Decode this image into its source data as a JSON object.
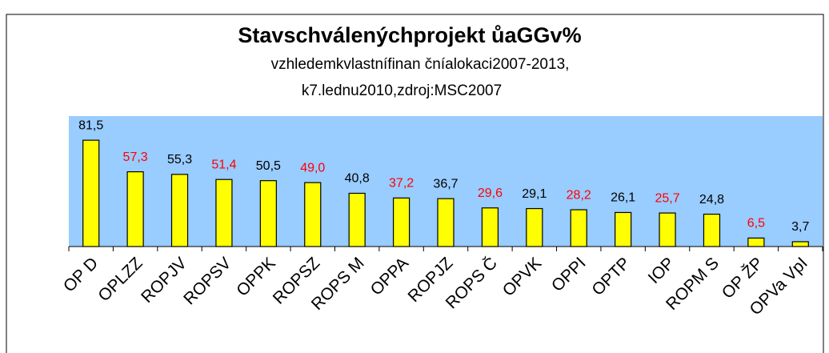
{
  "chart_data": {
    "type": "bar",
    "title": "Stavschválenýchprojekt ůaGGv%",
    "subtitle": [
      "vzhledemkvlastnífinan  čníalokaci2007-2013,",
      "k7.lednu2010,zdroj:MSC2007"
    ],
    "categories": [
      "OP D",
      "OPLZZ",
      "ROPJV",
      "ROPSV",
      "OPPK",
      "ROPSZ",
      "ROPS M",
      "OPPA",
      "ROPJZ",
      "ROPS Č",
      "OPVK",
      "OPPI",
      "OPTP",
      "IOP",
      "ROPM S",
      "OP ŽP",
      "OPVa VpI"
    ],
    "values": [
      81.5,
      57.3,
      55.3,
      51.4,
      50.5,
      49.0,
      40.8,
      37.2,
      36.7,
      29.6,
      29.1,
      28.2,
      26.1,
      25.7,
      24.8,
      6.5,
      3.7
    ],
    "value_labels": [
      "81,5",
      "57,3",
      "55,3",
      "51,4",
      "50,5",
      "49,0",
      "40,8",
      "37,2",
      "36,7",
      "29,6",
      "29,1",
      "28,2",
      "26,1",
      "25,7",
      "24,8",
      "6,5",
      "3,7"
    ],
    "label_colors": [
      "#000000",
      "#ff0000",
      "#000000",
      "#ff0000",
      "#000000",
      "#ff0000",
      "#000000",
      "#ff0000",
      "#000000",
      "#ff0000",
      "#000000",
      "#ff0000",
      "#000000",
      "#ff0000",
      "#000000",
      "#ff0000",
      "#000000"
    ],
    "color": "#ffff00",
    "plot_background": "#99ccff",
    "ylim": [
      0,
      100
    ]
  }
}
